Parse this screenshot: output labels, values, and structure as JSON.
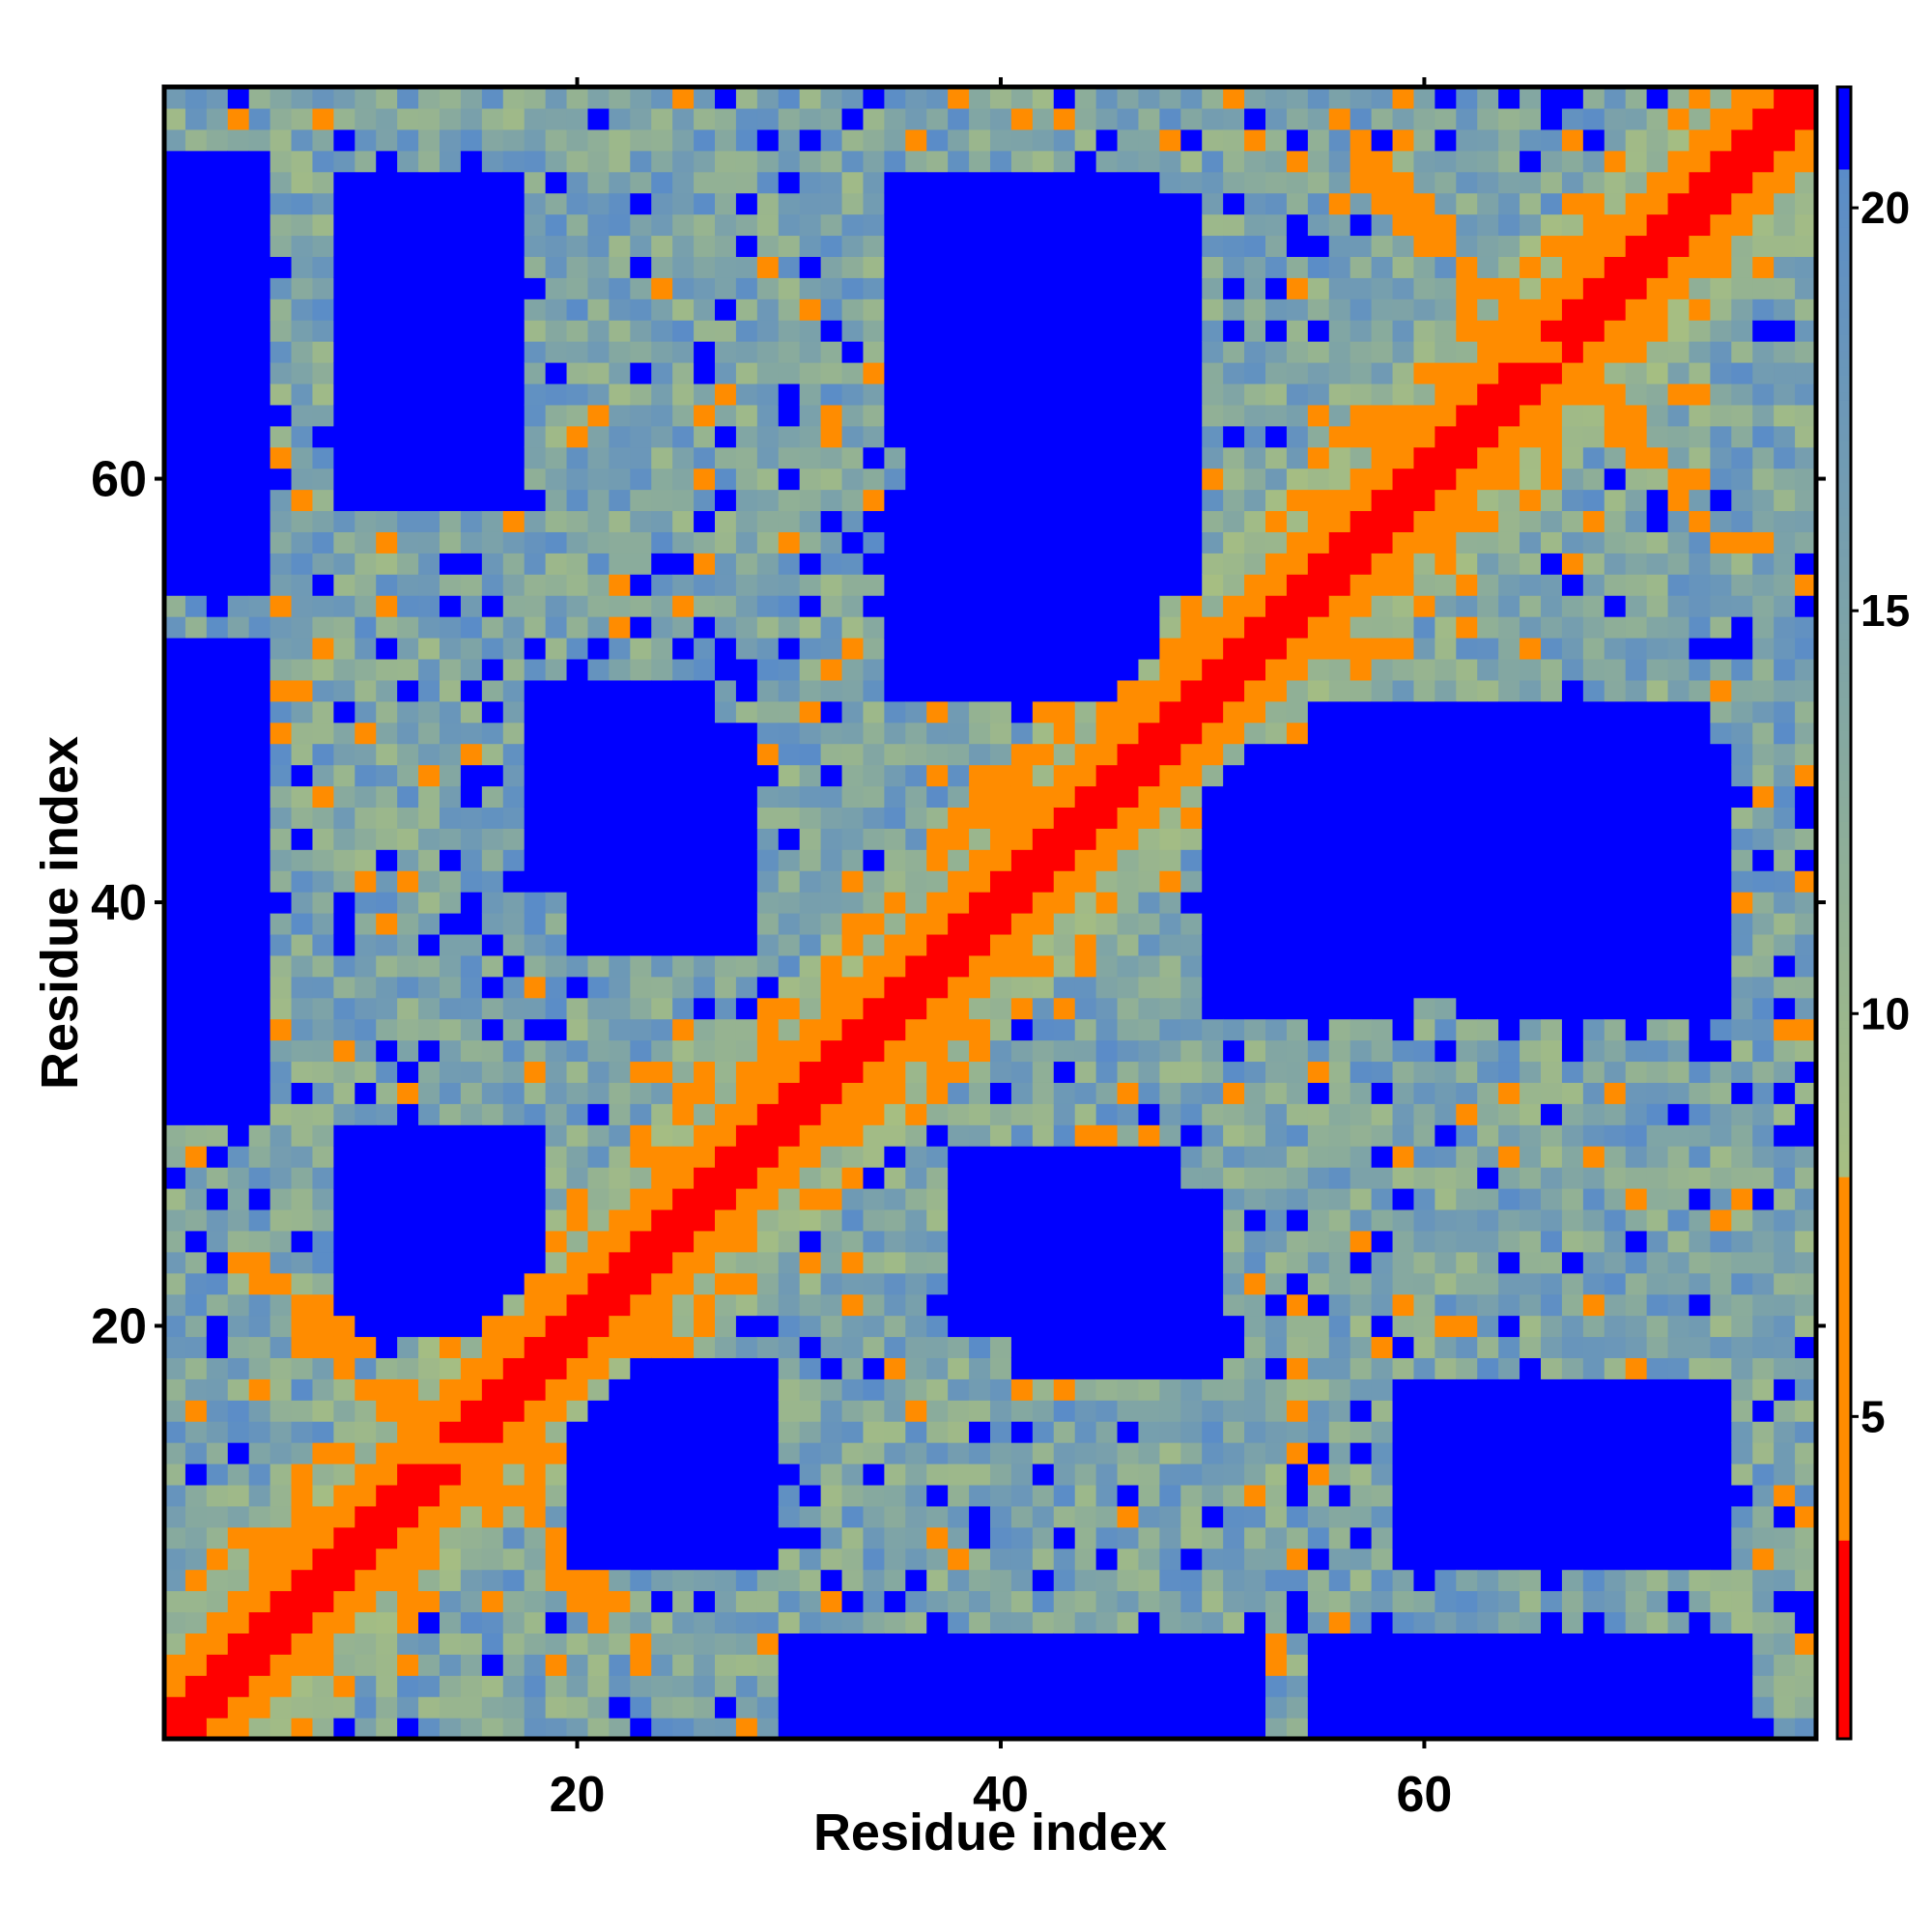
{
  "chart_data": {
    "type": "heatmap",
    "title": "",
    "xlabel": "Residue index",
    "ylabel": "Residue index",
    "x_range": [
      1,
      78
    ],
    "y_range": [
      1,
      78
    ],
    "x_ticks": [
      "20",
      "40",
      "60"
    ],
    "y_ticks": [
      "20",
      "40",
      "60"
    ],
    "x_tick_values": [
      20,
      40,
      60
    ],
    "y_tick_values": [
      20,
      40,
      60
    ],
    "grid": false,
    "legend": "colorbar-right",
    "colorbar": {
      "range": [
        1,
        21.5
      ],
      "ticks": [
        "5",
        "10",
        "15",
        "20"
      ],
      "tick_values": [
        5,
        10,
        15,
        20
      ],
      "colors": {
        "contact": "#ff0000",
        "near": "#ff8c00",
        "mid_low": "#a6be82",
        "mid_high": "#5a8cc8",
        "far": "#0000ff"
      }
    },
    "description_values": {
      "diagonal_distance": 1,
      "max_distance": 21.5
    },
    "domains": [
      {
        "x": [
          9,
          17
        ],
        "y": [
          59,
          74
        ]
      },
      {
        "x": [
          36,
          49
        ],
        "y": [
          55,
          73
        ]
      },
      {
        "x": [
          20,
          29
        ],
        "y": [
          9,
          18
        ]
      },
      {
        "x": [
          9,
          17
        ],
        "y": [
          21,
          29
        ]
      },
      {
        "x": [
          50,
          59
        ],
        "y": [
          35,
          47
        ]
      },
      {
        "x": [
          62,
          74
        ],
        "y": [
          35,
          47
        ]
      },
      {
        "x": [
          60,
          72
        ],
        "y": [
          9,
          17
        ]
      },
      {
        "x": [
          20,
          28
        ],
        "y": [
          38,
          48
        ]
      },
      {
        "x": [
          41,
          50
        ],
        "y": [
          18,
          26
        ]
      },
      {
        "x": [
          40,
          52
        ],
        "y": [
          1,
          5
        ]
      },
      {
        "x": [
          1,
          5
        ],
        "y": [
          30,
          50
        ]
      },
      {
        "x": [
          1,
          5
        ],
        "y": [
          55,
          75
        ]
      }
    ]
  }
}
